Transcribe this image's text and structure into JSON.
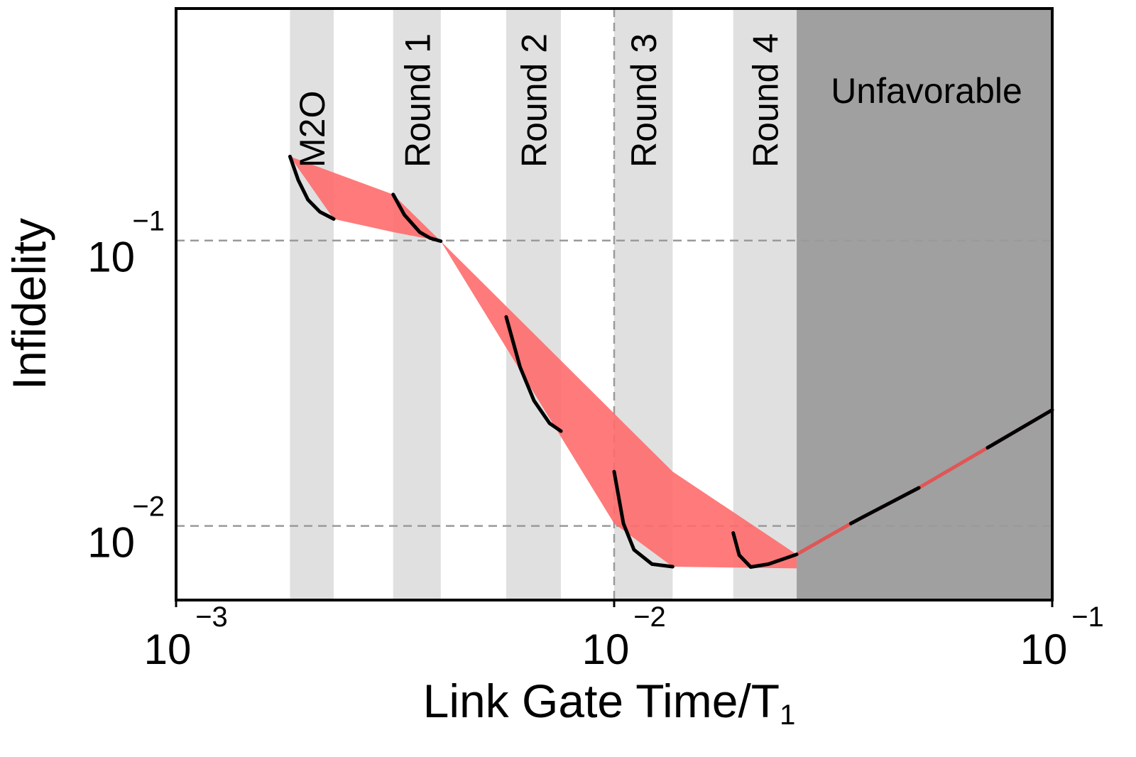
{
  "chart_data": {
    "type": "area",
    "title": "",
    "xlabel": "Link Gate Time/T",
    "xlabel_sub": "1",
    "ylabel": "Infidelity",
    "xscale": "log",
    "yscale": "log",
    "xlim": [
      0.001,
      0.1
    ],
    "ylim": [
      0.0055,
      0.65
    ],
    "x_ticks": [
      {
        "base": "10",
        "exp": "−3",
        "value": 0.001
      },
      {
        "base": "10",
        "exp": "−2",
        "value": 0.01
      },
      {
        "base": "10",
        "exp": "−1",
        "value": 0.1
      }
    ],
    "y_ticks": [
      {
        "base": "10",
        "exp": "−1",
        "value": 0.1
      },
      {
        "base": "10",
        "exp": "−2",
        "value": 0.01
      }
    ],
    "grid": "dashed at 10^-1 and 10^-2 (y) and 10^-2 (x)",
    "bands": [
      {
        "label": "M2O",
        "x0": 0.00182,
        "x1": 0.00229
      },
      {
        "label": "Round 1",
        "x0": 0.00313,
        "x1": 0.00402
      },
      {
        "label": "Round 2",
        "x0": 0.00567,
        "x1": 0.00756
      },
      {
        "label": "Round 3",
        "x0": 0.01,
        "x1": 0.0136
      },
      {
        "label": "Round 4",
        "x0": 0.0187,
        "x1": 0.0261
      }
    ],
    "unfavorable_region": {
      "label": "Unfavorable",
      "x0": 0.0261,
      "x1": 0.1
    },
    "envelope": {
      "name": "",
      "color": "#ff6b6b",
      "upper": [
        [
          0.00182,
          0.197
        ],
        [
          0.00313,
          0.145
        ],
        [
          0.00402,
          0.0995
        ],
        [
          0.0136,
          0.0155
        ],
        [
          0.0261,
          0.00795
        ]
      ],
      "lower": [
        [
          0.00229,
          0.119
        ],
        [
          0.00313,
          0.107
        ],
        [
          0.00402,
          0.0995
        ],
        [
          0.01,
          0.0102
        ],
        [
          0.0136,
          0.0072
        ],
        [
          0.0261,
          0.0071
        ]
      ]
    },
    "continuation": {
      "color": "#ff6b6b",
      "points": [
        [
          0.0261,
          0.00795
        ],
        [
          0.0347,
          0.0102
        ],
        [
          0.0496,
          0.0136
        ],
        [
          0.0712,
          0.0188
        ],
        [
          0.1,
          0.0255
        ]
      ]
    },
    "black_segments": [
      {
        "name": "M2O",
        "points": [
          [
            0.00182,
            0.197
          ],
          [
            0.0019,
            0.163
          ],
          [
            0.002,
            0.139
          ],
          [
            0.00213,
            0.126
          ],
          [
            0.00229,
            0.119
          ]
        ]
      },
      {
        "name": "Round 1",
        "points": [
          [
            0.00313,
            0.145
          ],
          [
            0.00332,
            0.123
          ],
          [
            0.0036,
            0.107
          ],
          [
            0.0038,
            0.102
          ],
          [
            0.00402,
            0.0995
          ]
        ]
      },
      {
        "name": "Round 2",
        "points": [
          [
            0.00567,
            0.054
          ],
          [
            0.0061,
            0.036
          ],
          [
            0.00656,
            0.0275
          ],
          [
            0.00712,
            0.0229
          ],
          [
            0.00756,
            0.0215
          ]
        ]
      },
      {
        "name": "Round 3",
        "points": [
          [
            0.01,
            0.0155
          ],
          [
            0.0105,
            0.0102
          ],
          [
            0.0111,
            0.00825
          ],
          [
            0.0122,
            0.00735
          ],
          [
            0.0136,
            0.0072
          ]
        ]
      },
      {
        "name": "Round 4",
        "points": [
          [
            0.0187,
            0.00945
          ],
          [
            0.0193,
            0.0079
          ],
          [
            0.0205,
            0.00718
          ],
          [
            0.0225,
            0.00735
          ],
          [
            0.0261,
            0.00795
          ]
        ]
      },
      {
        "name": "",
        "points": [
          [
            0.0347,
            0.0102
          ],
          [
            0.0372,
            0.0108
          ],
          [
            0.0496,
            0.0136
          ]
        ]
      },
      {
        "name": "",
        "points": [
          [
            0.0712,
            0.0188
          ],
          [
            0.1,
            0.0255
          ]
        ]
      }
    ]
  }
}
